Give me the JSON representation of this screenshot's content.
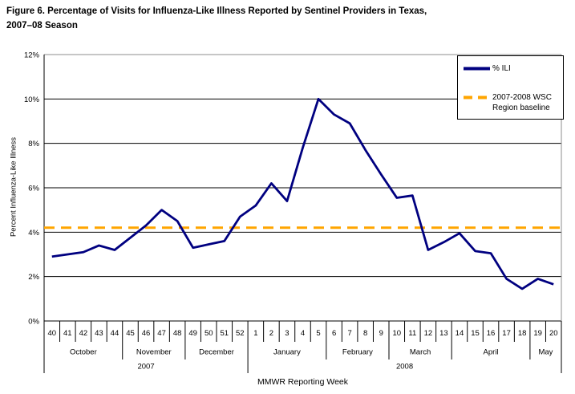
{
  "figure": {
    "title_line1": "Figure 6. Percentage of Visits for Influenza-Like Illness Reported by Sentinel Providers in Texas,",
    "title_line2": "2007–08 Season"
  },
  "legend": {
    "ili": "% ILI",
    "baseline_line1": "2007-2008 WSC",
    "baseline_line2": "Region baseline"
  },
  "colors": {
    "ili_line": "#000080",
    "baseline_line": "#FFA500",
    "gridline": "#000000",
    "plot_top_border": "#8c8c8c"
  },
  "chart_data": {
    "type": "line",
    "title": "Figure 6. Percentage of Visits for Influenza-Like Illness Reported by Sentinel Providers in Texas, 2007–08 Season",
    "xlabel": "MMWR Reporting Week",
    "ylabel": "Percent Influenza-Like Illness",
    "ylim": [
      0,
      12
    ],
    "grid": true,
    "legend_position": "top-right",
    "yticks": [
      {
        "label": "0%",
        "value": 0
      },
      {
        "label": "2%",
        "value": 2
      },
      {
        "label": "4%",
        "value": 4
      },
      {
        "label": "6%",
        "value": 6
      },
      {
        "label": "8%",
        "value": 8
      },
      {
        "label": "10%",
        "value": 10
      },
      {
        "label": "12%",
        "value": 12
      }
    ],
    "weeks": [
      "40",
      "41",
      "42",
      "43",
      "44",
      "45",
      "46",
      "47",
      "48",
      "49",
      "50",
      "51",
      "52",
      "1",
      "2",
      "3",
      "4",
      "5",
      "6",
      "7",
      "8",
      "9",
      "10",
      "11",
      "12",
      "13",
      "14",
      "15",
      "16",
      "17",
      "18",
      "19",
      "20"
    ],
    "months": [
      {
        "label": "October",
        "weeks": 5
      },
      {
        "label": "November",
        "weeks": 4
      },
      {
        "label": "December",
        "weeks": 4
      },
      {
        "label": "January",
        "weeks": 5
      },
      {
        "label": "February",
        "weeks": 4
      },
      {
        "label": "March",
        "weeks": 4
      },
      {
        "label": "April",
        "weeks": 5
      },
      {
        "label": "May",
        "weeks": 2
      }
    ],
    "years": [
      {
        "label": "2007",
        "weeks": 13
      },
      {
        "label": "2008",
        "weeks": 20
      }
    ],
    "series": [
      {
        "name": "% ILI",
        "style": "solid",
        "color": "#000080",
        "values": [
          2.9,
          3.0,
          3.1,
          3.4,
          3.2,
          3.75,
          4.3,
          5.0,
          4.5,
          3.3,
          3.45,
          3.6,
          4.7,
          5.2,
          6.2,
          5.4,
          7.8,
          10.0,
          9.3,
          8.9,
          7.7,
          6.6,
          5.55,
          5.65,
          3.2,
          3.55,
          3.95,
          3.15,
          3.05,
          1.9,
          1.45,
          1.9,
          1.65
        ]
      },
      {
        "name": "2007-2008 WSC Region baseline",
        "style": "dashed",
        "color": "#FFA500",
        "value": 4.2
      }
    ]
  }
}
